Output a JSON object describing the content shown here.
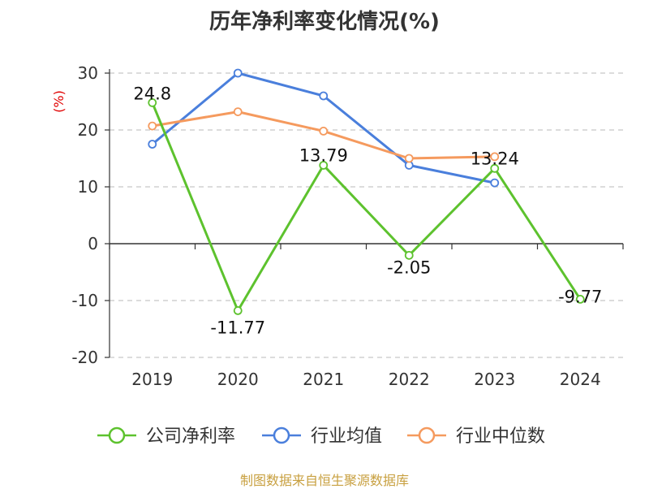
{
  "title": "历年净利率变化情况(%)",
  "source": "制图数据来自恒生聚源数据库",
  "chart_data": {
    "type": "line",
    "ylabel": "(%)",
    "x": [
      "2019",
      "2020",
      "2021",
      "2022",
      "2023",
      "2024"
    ],
    "ylim": [
      -20,
      30
    ],
    "yticks": [
      "30",
      "20",
      "10",
      "0",
      "-10",
      "-20"
    ],
    "grid": true,
    "legend_position": "bottom",
    "series": [
      {
        "name": "公司净利率",
        "color": "#5dc22e",
        "values": [
          24.8,
          -11.77,
          13.79,
          -2.05,
          13.24,
          -9.77
        ],
        "labels": [
          "24.8",
          "-11.77",
          "13.79",
          "-2.05",
          "13.24",
          "-9.77"
        ]
      },
      {
        "name": "行业均值",
        "color": "#4a7fdc",
        "values": [
          17.5,
          30.0,
          26.0,
          13.8,
          10.7,
          null
        ]
      },
      {
        "name": "行业中位数",
        "color": "#f59a5e",
        "values": [
          20.7,
          23.2,
          19.8,
          15.0,
          15.3,
          null
        ]
      }
    ]
  }
}
